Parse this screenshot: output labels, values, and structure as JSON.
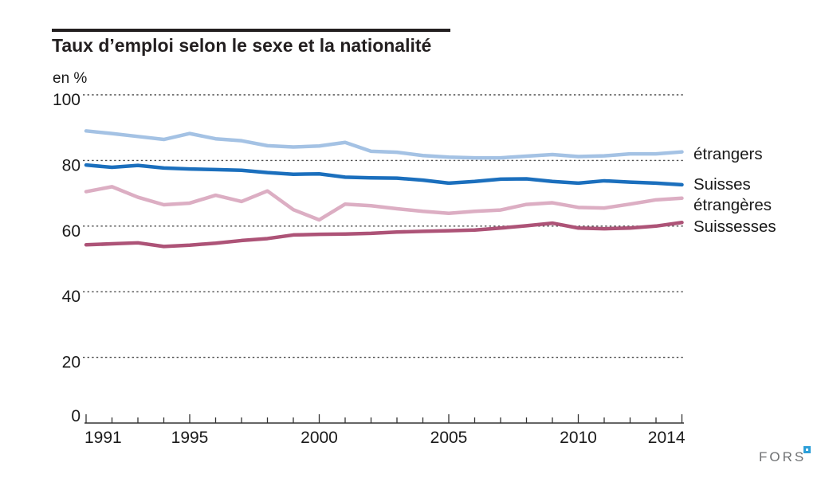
{
  "header": {
    "title": "Taux d’emploi selon le sexe et la nationalité",
    "unit_label": "en %"
  },
  "branding": {
    "text": "FORS"
  },
  "chart_data": {
    "type": "line",
    "title": "Taux d’emploi selon le sexe et la nationalité",
    "ylabel": "en %",
    "xlabel": "",
    "ylim": [
      0,
      100
    ],
    "grid": "horizontal dotted gridlines at 20, 40, 60, 80, 100",
    "legend_position": "right edge direct labels",
    "y_ticks": [
      0,
      20,
      40,
      60,
      80,
      100
    ],
    "x": [
      1991,
      1992,
      1993,
      1994,
      1995,
      1996,
      1997,
      1998,
      1999,
      2000,
      2001,
      2002,
      2003,
      2004,
      2005,
      2006,
      2007,
      2008,
      2009,
      2010,
      2011,
      2012,
      2013,
      2014
    ],
    "x_labeled_ticks": [
      1991,
      1995,
      2000,
      2005,
      2010,
      2014
    ],
    "series": [
      {
        "name": "étrangers",
        "color": "#a4c2e4",
        "values": [
          89.0,
          88.2,
          87.3,
          86.4,
          88.2,
          86.6,
          86.0,
          84.5,
          84.1,
          84.4,
          85.5,
          82.8,
          82.5,
          81.5,
          81.0,
          80.8,
          80.8,
          81.3,
          81.8,
          81.2,
          81.4,
          82.0,
          82.0,
          82.6
        ]
      },
      {
        "name": "Suisses",
        "color": "#1b6fbd",
        "values": [
          78.6,
          77.9,
          78.5,
          77.7,
          77.4,
          77.2,
          77.0,
          76.3,
          75.8,
          75.9,
          74.9,
          74.7,
          74.6,
          74.0,
          73.1,
          73.6,
          74.3,
          74.4,
          73.6,
          73.1,
          73.8,
          73.4,
          73.1,
          72.6
        ]
      },
      {
        "name": "étrangères",
        "color": "#dcaec3",
        "values": [
          70.5,
          72.0,
          68.8,
          66.5,
          67.0,
          69.4,
          67.5,
          70.7,
          65.0,
          61.9,
          66.7,
          66.2,
          65.3,
          64.5,
          63.9,
          64.5,
          64.9,
          66.6,
          67.1,
          65.7,
          65.5,
          66.7,
          68.0,
          68.5
        ]
      },
      {
        "name": "Suissesses",
        "color": "#ad5377",
        "values": [
          54.3,
          54.6,
          54.9,
          53.8,
          54.2,
          54.8,
          55.6,
          56.2,
          57.3,
          57.5,
          57.6,
          57.8,
          58.2,
          58.4,
          58.6,
          58.8,
          59.4,
          60.1,
          60.9,
          59.4,
          59.2,
          59.4,
          60.0,
          61.1
        ]
      }
    ],
    "colors": {
      "gridline": "#4d4d4d",
      "axis": "#333333",
      "text": "#1a1a1a",
      "fors_gray": "#6f7173",
      "fors_blue": "#2d9fd8"
    }
  }
}
